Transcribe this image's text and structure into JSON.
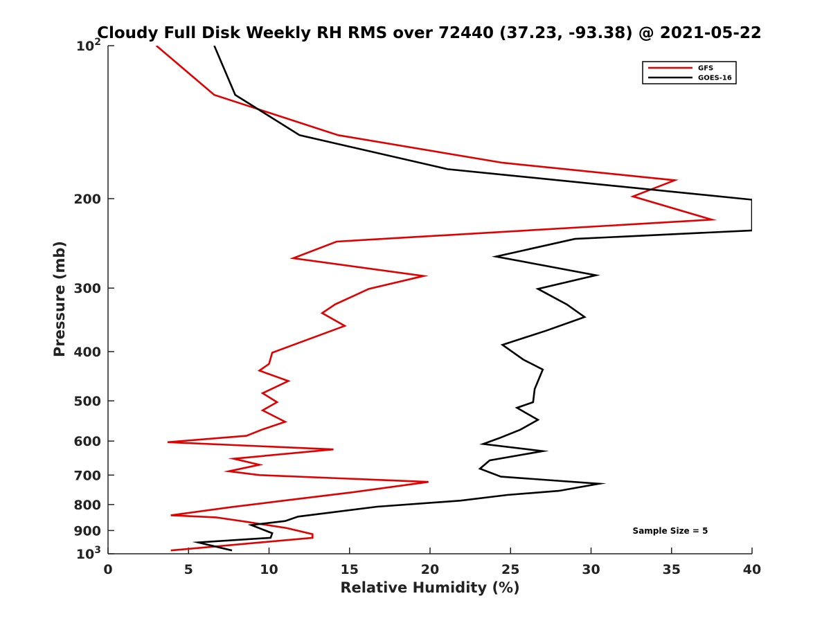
{
  "chart_data": {
    "type": "line",
    "title": "Cloudy Full Disk Weekly RH RMS over 72440 (37.23, -93.38) @ 2021-05-22",
    "xlabel": "Relative Humidity (%)",
    "ylabel": "Pressure (mb)",
    "xlim": [
      0,
      40
    ],
    "ylim": [
      100,
      1000
    ],
    "yscale": "log",
    "y_reversed": true,
    "grid": false,
    "legend_position": "top-right",
    "x_ticks": [
      "0",
      "5",
      "10",
      "15",
      "20",
      "25",
      "30",
      "35",
      "40"
    ],
    "y_tick_values": [
      100,
      200,
      300,
      400,
      500,
      600,
      700,
      800,
      900,
      1000
    ],
    "y_ticks": [
      {
        "base": "10",
        "exp": "2"
      },
      {
        "base": "200",
        "exp": ""
      },
      {
        "base": "300",
        "exp": ""
      },
      {
        "base": "400",
        "exp": ""
      },
      {
        "base": "500",
        "exp": ""
      },
      {
        "base": "600",
        "exp": ""
      },
      {
        "base": "700",
        "exp": ""
      },
      {
        "base": "800",
        "exp": ""
      },
      {
        "base": "900",
        "exp": ""
      },
      {
        "base": "10",
        "exp": "3"
      }
    ],
    "annotation": "Sample Size = 5",
    "series": [
      {
        "name": "GFS",
        "color": "#e00000",
        "points": [
          [
            3.0,
            100
          ],
          [
            6.6,
            125
          ],
          [
            14.3,
            150
          ],
          [
            24.5,
            170
          ],
          [
            35.2,
            184
          ],
          [
            32.6,
            198
          ],
          [
            37.5,
            220
          ],
          [
            14.2,
            243
          ],
          [
            11.5,
            262
          ],
          [
            19.6,
            284
          ],
          [
            16.2,
            301
          ],
          [
            14.1,
            323
          ],
          [
            13.3,
            336
          ],
          [
            14.7,
            356
          ],
          [
            10.2,
            402
          ],
          [
            10.0,
            423
          ],
          [
            9.4,
            436
          ],
          [
            11.2,
            457
          ],
          [
            9.6,
            483
          ],
          [
            10.5,
            503
          ],
          [
            9.6,
            522
          ],
          [
            11.0,
            550
          ],
          [
            9.6,
            569
          ],
          [
            8.6,
            586
          ],
          [
            3.7,
            603
          ],
          [
            14.0,
            623
          ],
          [
            7.8,
            650
          ],
          [
            9.4,
            668
          ],
          [
            7.5,
            688
          ],
          [
            9.4,
            700
          ],
          [
            19.9,
            722
          ],
          [
            15.0,
            758
          ],
          [
            10.8,
            787
          ],
          [
            7.7,
            809
          ],
          [
            3.9,
            840
          ],
          [
            6.7,
            848
          ],
          [
            8.6,
            865
          ],
          [
            11.1,
            890
          ],
          [
            12.7,
            915
          ],
          [
            12.7,
            930
          ],
          [
            3.9,
            985
          ]
        ]
      },
      {
        "name": "GOES-16",
        "color": "#000000",
        "points": [
          [
            6.6,
            100
          ],
          [
            7.9,
            125
          ],
          [
            11.9,
            150
          ],
          [
            21.1,
            175
          ],
          [
            40.0,
            201
          ],
          [
            40.0,
            231
          ],
          [
            29.0,
            240
          ],
          [
            24.1,
            260
          ],
          [
            30.3,
            283
          ],
          [
            26.7,
            301
          ],
          [
            28.5,
            323
          ],
          [
            29.6,
            342
          ],
          [
            27.2,
            364
          ],
          [
            24.5,
            388
          ],
          [
            25.8,
            415
          ],
          [
            27.0,
            434
          ],
          [
            26.5,
            474
          ],
          [
            26.4,
            503
          ],
          [
            25.4,
            516
          ],
          [
            26.7,
            545
          ],
          [
            25.6,
            570
          ],
          [
            24.3,
            592
          ],
          [
            23.3,
            608
          ],
          [
            27.0,
            628
          ],
          [
            23.7,
            655
          ],
          [
            23.1,
            680
          ],
          [
            24.4,
            705
          ],
          [
            30.5,
            728
          ],
          [
            28.0,
            752
          ],
          [
            24.8,
            766
          ],
          [
            21.9,
            786
          ],
          [
            16.7,
            808
          ],
          [
            11.8,
            845
          ],
          [
            11.0,
            862
          ],
          [
            8.9,
            878
          ],
          [
            10.2,
            911
          ],
          [
            10.1,
            930
          ],
          [
            5.6,
            950
          ],
          [
            7.7,
            985
          ]
        ]
      }
    ]
  }
}
